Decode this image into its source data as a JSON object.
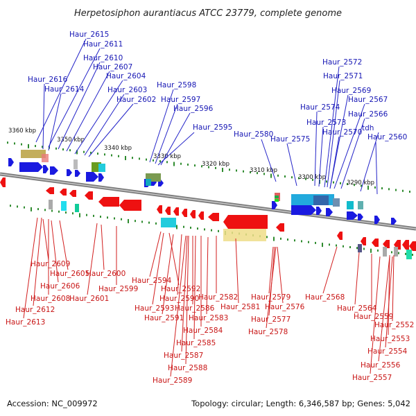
{
  "title": "Herpetosiphon aurantiacus ATCC 23779, complete genome",
  "footer": {
    "accession": "Accession: NC_009972",
    "summary": "Topology: circular; Length: 6,346,587 bp; Genes: 5,042"
  },
  "kbp_ticks": [
    "3360 kbp",
    "3350 kbp",
    "3340 kbp",
    "3330 kbp",
    "3320 kbp",
    "3310 kbp",
    "3300 kbp",
    "3290 kbp"
  ],
  "top_labels": [
    "Haur_2615",
    "Haur_2611",
    "Haur_2610",
    "Haur_2607",
    "Haur_2616",
    "Haur_2604",
    "Haur_2614",
    "Haur_2603",
    "Haur_2602",
    "Haur_2598",
    "Haur_2597",
    "Haur_2596",
    "Haur_2595",
    "Haur_2580",
    "Haur_2575",
    "Haur_2572",
    "Haur_2571",
    "Haur_2569",
    "Haur_2567",
    "Haur_2574",
    "Haur_2566",
    "Haur_2573",
    "Haur_2570",
    "tdh",
    "Haur_2560"
  ],
  "bottom_labels": [
    "Haur_2609",
    "Haur_2605",
    "Haur_2600",
    "Haur_2606",
    "Haur_2599",
    "Haur_2608",
    "Haur_2601",
    "Haur_2612",
    "Haur_2613",
    "Haur_2594",
    "Haur_2592",
    "Haur_2590",
    "Haur_2582",
    "Haur_2593",
    "Haur_2586",
    "Haur_2581",
    "Haur_2591",
    "Haur_2583",
    "Haur_2584",
    "Haur_2585",
    "Haur_2587",
    "Haur_2588",
    "Haur_2589",
    "Haur_2579",
    "Haur_2576",
    "Haur_2577",
    "Haur_2578",
    "Haur_2568",
    "Haur_2564",
    "Haur_2559",
    "Haur_2552",
    "Haur_2553",
    "Haur_2554",
    "Haur_2556",
    "Haur_2557"
  ]
}
